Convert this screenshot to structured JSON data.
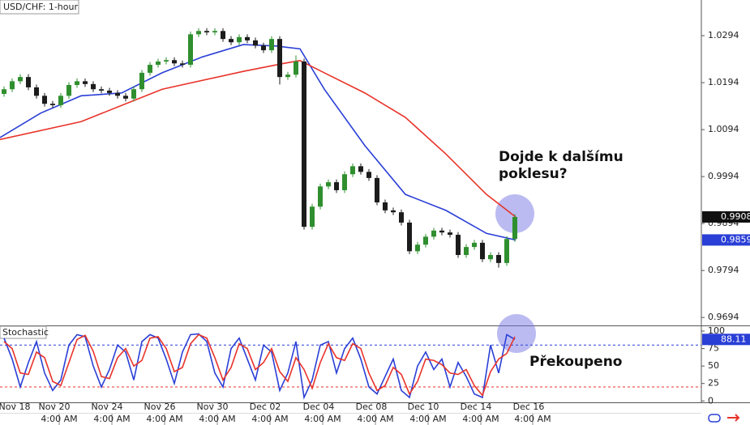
{
  "chart_data": [
    {
      "type": "candlestick",
      "title": "USD/CHF: 1-hour",
      "xlim": [
        0,
        86.5
      ],
      "ylim": [
        0.9677,
        1.037
      ],
      "yticks": [
        1.0294,
        1.0194,
        1.0094,
        0.9994,
        0.9894,
        0.9794,
        0.9694
      ],
      "up_color": "#2f8f2f",
      "down_color": "#1c1c1c",
      "last_tag": true,
      "ohlc": [
        [
          1.017,
          1.0186,
          1.0164,
          1.018
        ],
        [
          1.018,
          1.0203,
          1.0174,
          1.0197
        ],
        [
          1.0197,
          1.0212,
          1.0191,
          1.0206
        ],
        [
          1.0206,
          1.0212,
          1.0178,
          1.0184
        ],
        [
          1.0184,
          1.019,
          1.016,
          1.0166
        ],
        [
          1.0166,
          1.0172,
          1.0143,
          1.0149
        ],
        [
          1.0149,
          1.0155,
          1.014,
          1.0146
        ],
        [
          1.0146,
          1.0172,
          1.014,
          1.0166
        ],
        [
          1.0166,
          1.0195,
          1.016,
          1.0189
        ],
        [
          1.0189,
          1.0203,
          1.0183,
          1.0197
        ],
        [
          1.0197,
          1.0203,
          1.0185,
          1.0191
        ],
        [
          1.0191,
          1.0197,
          1.0174,
          1.018
        ],
        [
          1.018,
          1.0186,
          1.0171,
          1.0177
        ],
        [
          1.0177,
          1.0183,
          1.0166,
          1.0172
        ],
        [
          1.0172,
          1.0178,
          1.016,
          1.0166
        ],
        [
          1.0166,
          1.0172,
          1.0154,
          1.016
        ],
        [
          1.016,
          1.0186,
          1.0154,
          1.018
        ],
        [
          1.018,
          1.0221,
          1.0174,
          1.0215
        ],
        [
          1.0215,
          1.0238,
          1.0209,
          1.0232
        ],
        [
          1.0232,
          1.0245,
          1.0226,
          1.0239
        ],
        [
          1.0239,
          1.0248,
          1.0233,
          1.0242
        ],
        [
          1.0242,
          1.0248,
          1.0229,
          1.0235
        ],
        [
          1.0235,
          1.0241,
          1.0226,
          1.0232
        ],
        [
          1.0232,
          1.0303,
          1.0226,
          1.0297
        ],
        [
          1.0297,
          1.031,
          1.0291,
          1.0304
        ],
        [
          1.0304,
          1.031,
          1.0295,
          1.0301
        ],
        [
          1.0301,
          1.031,
          1.0295,
          1.0304
        ],
        [
          1.0304,
          1.031,
          1.0281,
          1.0287
        ],
        [
          1.0287,
          1.0293,
          1.0274,
          1.028
        ],
        [
          1.028,
          1.0297,
          1.0274,
          1.0291
        ],
        [
          1.0291,
          1.0297,
          1.0278,
          1.0284
        ],
        [
          1.0284,
          1.029,
          1.0267,
          1.0273
        ],
        [
          1.0273,
          1.0279,
          1.0257,
          1.0263
        ],
        [
          1.0263,
          1.0293,
          1.0257,
          1.0287
        ],
        [
          1.0287,
          1.0293,
          1.019,
          1.0206
        ],
        [
          1.0206,
          1.0217,
          1.02,
          1.0211
        ],
        [
          1.0211,
          1.0252,
          1.0205,
          1.0239
        ],
        [
          1.0239,
          1.0245,
          0.9881,
          0.9887
        ],
        [
          0.9887,
          0.9936,
          0.9881,
          0.993
        ],
        [
          0.993,
          0.9979,
          0.9924,
          0.9973
        ],
        [
          0.9973,
          0.9988,
          0.9967,
          0.9982
        ],
        [
          0.9982,
          0.9988,
          0.9959,
          0.9965
        ],
        [
          0.9965,
          1.0005,
          0.9959,
          0.9999
        ],
        [
          0.9999,
          1.0022,
          0.9993,
          1.0016
        ],
        [
          1.0016,
          1.0022,
          0.9998,
          1.0004
        ],
        [
          1.0004,
          1.001,
          0.9985,
          0.9991
        ],
        [
          0.9991,
          0.9997,
          0.9933,
          0.9939
        ],
        [
          0.9939,
          0.9945,
          0.9916,
          0.9922
        ],
        [
          0.9922,
          0.9928,
          0.9912,
          0.9918
        ],
        [
          0.9918,
          0.9924,
          0.989,
          0.9896
        ],
        [
          0.9896,
          0.9902,
          0.9829,
          0.9835
        ],
        [
          0.9835,
          0.9855,
          0.9829,
          0.9849
        ],
        [
          0.9849,
          0.9872,
          0.9843,
          0.9866
        ],
        [
          0.9866,
          0.9885,
          0.986,
          0.9879
        ],
        [
          0.9879,
          0.9885,
          0.9869,
          0.9875
        ],
        [
          0.9875,
          0.9881,
          0.9864,
          0.987
        ],
        [
          0.987,
          0.9876,
          0.9821,
          0.9827
        ],
        [
          0.9827,
          0.985,
          0.9821,
          0.9844
        ],
        [
          0.9844,
          0.9859,
          0.9838,
          0.9853
        ],
        [
          0.9853,
          0.9859,
          0.9812,
          0.9818
        ],
        [
          0.9818,
          0.9833,
          0.9812,
          0.9827
        ],
        [
          0.9827,
          0.9833,
          0.98,
          0.981
        ],
        [
          0.981,
          0.9867,
          0.9804,
          0.9861
        ],
        [
          0.9861,
          0.9914,
          0.9855,
          0.9908
        ]
      ],
      "series": [
        {
          "color": "#2a3fd6",
          "last_tag": true,
          "x": [
            0,
            5,
            10,
            15,
            20,
            25,
            30,
            34,
            37,
            40,
            45,
            50,
            55,
            60,
            63.6
          ],
          "values": [
            1.0077,
            1.0129,
            1.0166,
            1.0172,
            1.0215,
            1.0249,
            1.0275,
            1.0272,
            1.0266,
            1.018,
            1.006,
            0.9956,
            0.9922,
            0.9873,
            0.9859
          ]
        },
        {
          "color": "#e8332a",
          "x": [
            0,
            10,
            20,
            30,
            35,
            37,
            40,
            45,
            50,
            55,
            60,
            63.6
          ],
          "values": [
            1.0073,
            1.0111,
            1.018,
            1.0218,
            1.0235,
            1.0241,
            1.0215,
            1.0172,
            1.012,
            1.0042,
            0.9956,
            0.9908
          ]
        }
      ],
      "annotations": [
        "Dojde k dalšímu",
        "poklesu?"
      ]
    },
    {
      "type": "line",
      "title": "Stochastic",
      "xlim": [
        0,
        86.5
      ],
      "ylim": [
        -2,
        107
      ],
      "yticks": [
        100,
        75,
        50,
        25,
        0
      ],
      "levels": [
        {
          "value": 80,
          "color": "#2a3fd6"
        },
        {
          "value": 20,
          "color": "#e8332a"
        }
      ],
      "series": [
        {
          "color": "#2a3fd6",
          "last_tag": true,
          "values": [
            90,
            60,
            20,
            55,
            85,
            40,
            15,
            30,
            80,
            95,
            92,
            50,
            20,
            45,
            80,
            70,
            30,
            85,
            95,
            90,
            60,
            25,
            70,
            95,
            96,
            85,
            40,
            20,
            75,
            90,
            60,
            30,
            80,
            70,
            15,
            40,
            85,
            5,
            30,
            80,
            85,
            40,
            75,
            90,
            60,
            20,
            10,
            35,
            60,
            15,
            5,
            50,
            70,
            45,
            60,
            20,
            55,
            35,
            10,
            5,
            80,
            40,
            95,
            88.11
          ]
        },
        {
          "color": "#e8332a",
          "values": [
            85,
            75,
            40,
            38,
            70,
            62,
            28,
            22,
            55,
            88,
            94,
            71,
            35,
            32,
            62,
            75,
            50,
            58,
            90,
            92,
            75,
            42,
            48,
            82,
            95,
            90,
            62,
            30,
            48,
            82,
            75,
            45,
            55,
            75,
            42,
            28,
            62,
            45,
            18,
            55,
            82,
            62,
            58,
            82,
            75,
            40,
            15,
            22,
            48,
            38,
            10,
            28,
            60,
            58,
            52,
            40,
            38,
            45,
            22,
            8,
            42,
            60,
            68,
            92
          ]
        }
      ],
      "xticks": [
        {
          "value": 1.8,
          "label": "Nov 18"
        },
        {
          "value": 6.7,
          "label": "Nov 20"
        },
        {
          "value": 13.2,
          "label": "Nov 24"
        },
        {
          "value": 19.7,
          "label": "Nov 26"
        },
        {
          "value": 26.2,
          "label": "Nov 30"
        },
        {
          "value": 32.7,
          "label": "Dec 02"
        },
        {
          "value": 39.3,
          "label": "Dec 04"
        },
        {
          "value": 45.8,
          "label": "Dec 08"
        },
        {
          "value": 52.2,
          "label": "Dec 10"
        },
        {
          "value": 58.7,
          "label": "Dec 14"
        },
        {
          "value": 65.2,
          "label": "Dec 16"
        }
      ],
      "xticks2": [
        {
          "value": 7.3,
          "label": "4:00 AM"
        },
        {
          "value": 13.8,
          "label": "4:00 AM"
        },
        {
          "value": 20.3,
          "label": "4:00 AM"
        },
        {
          "value": 26.8,
          "label": "4:00 AM"
        },
        {
          "value": 33.3,
          "label": "4:00 AM"
        },
        {
          "value": 39.8,
          "label": "4:00 AM"
        },
        {
          "value": 46.3,
          "label": "4:00 AM"
        },
        {
          "value": 52.8,
          "label": "4:00 AM"
        },
        {
          "value": 59.3,
          "label": "4:00 AM"
        },
        {
          "value": 65.7,
          "label": "4:00 AM"
        }
      ],
      "annotations": [
        "Překoupeno"
      ]
    }
  ]
}
